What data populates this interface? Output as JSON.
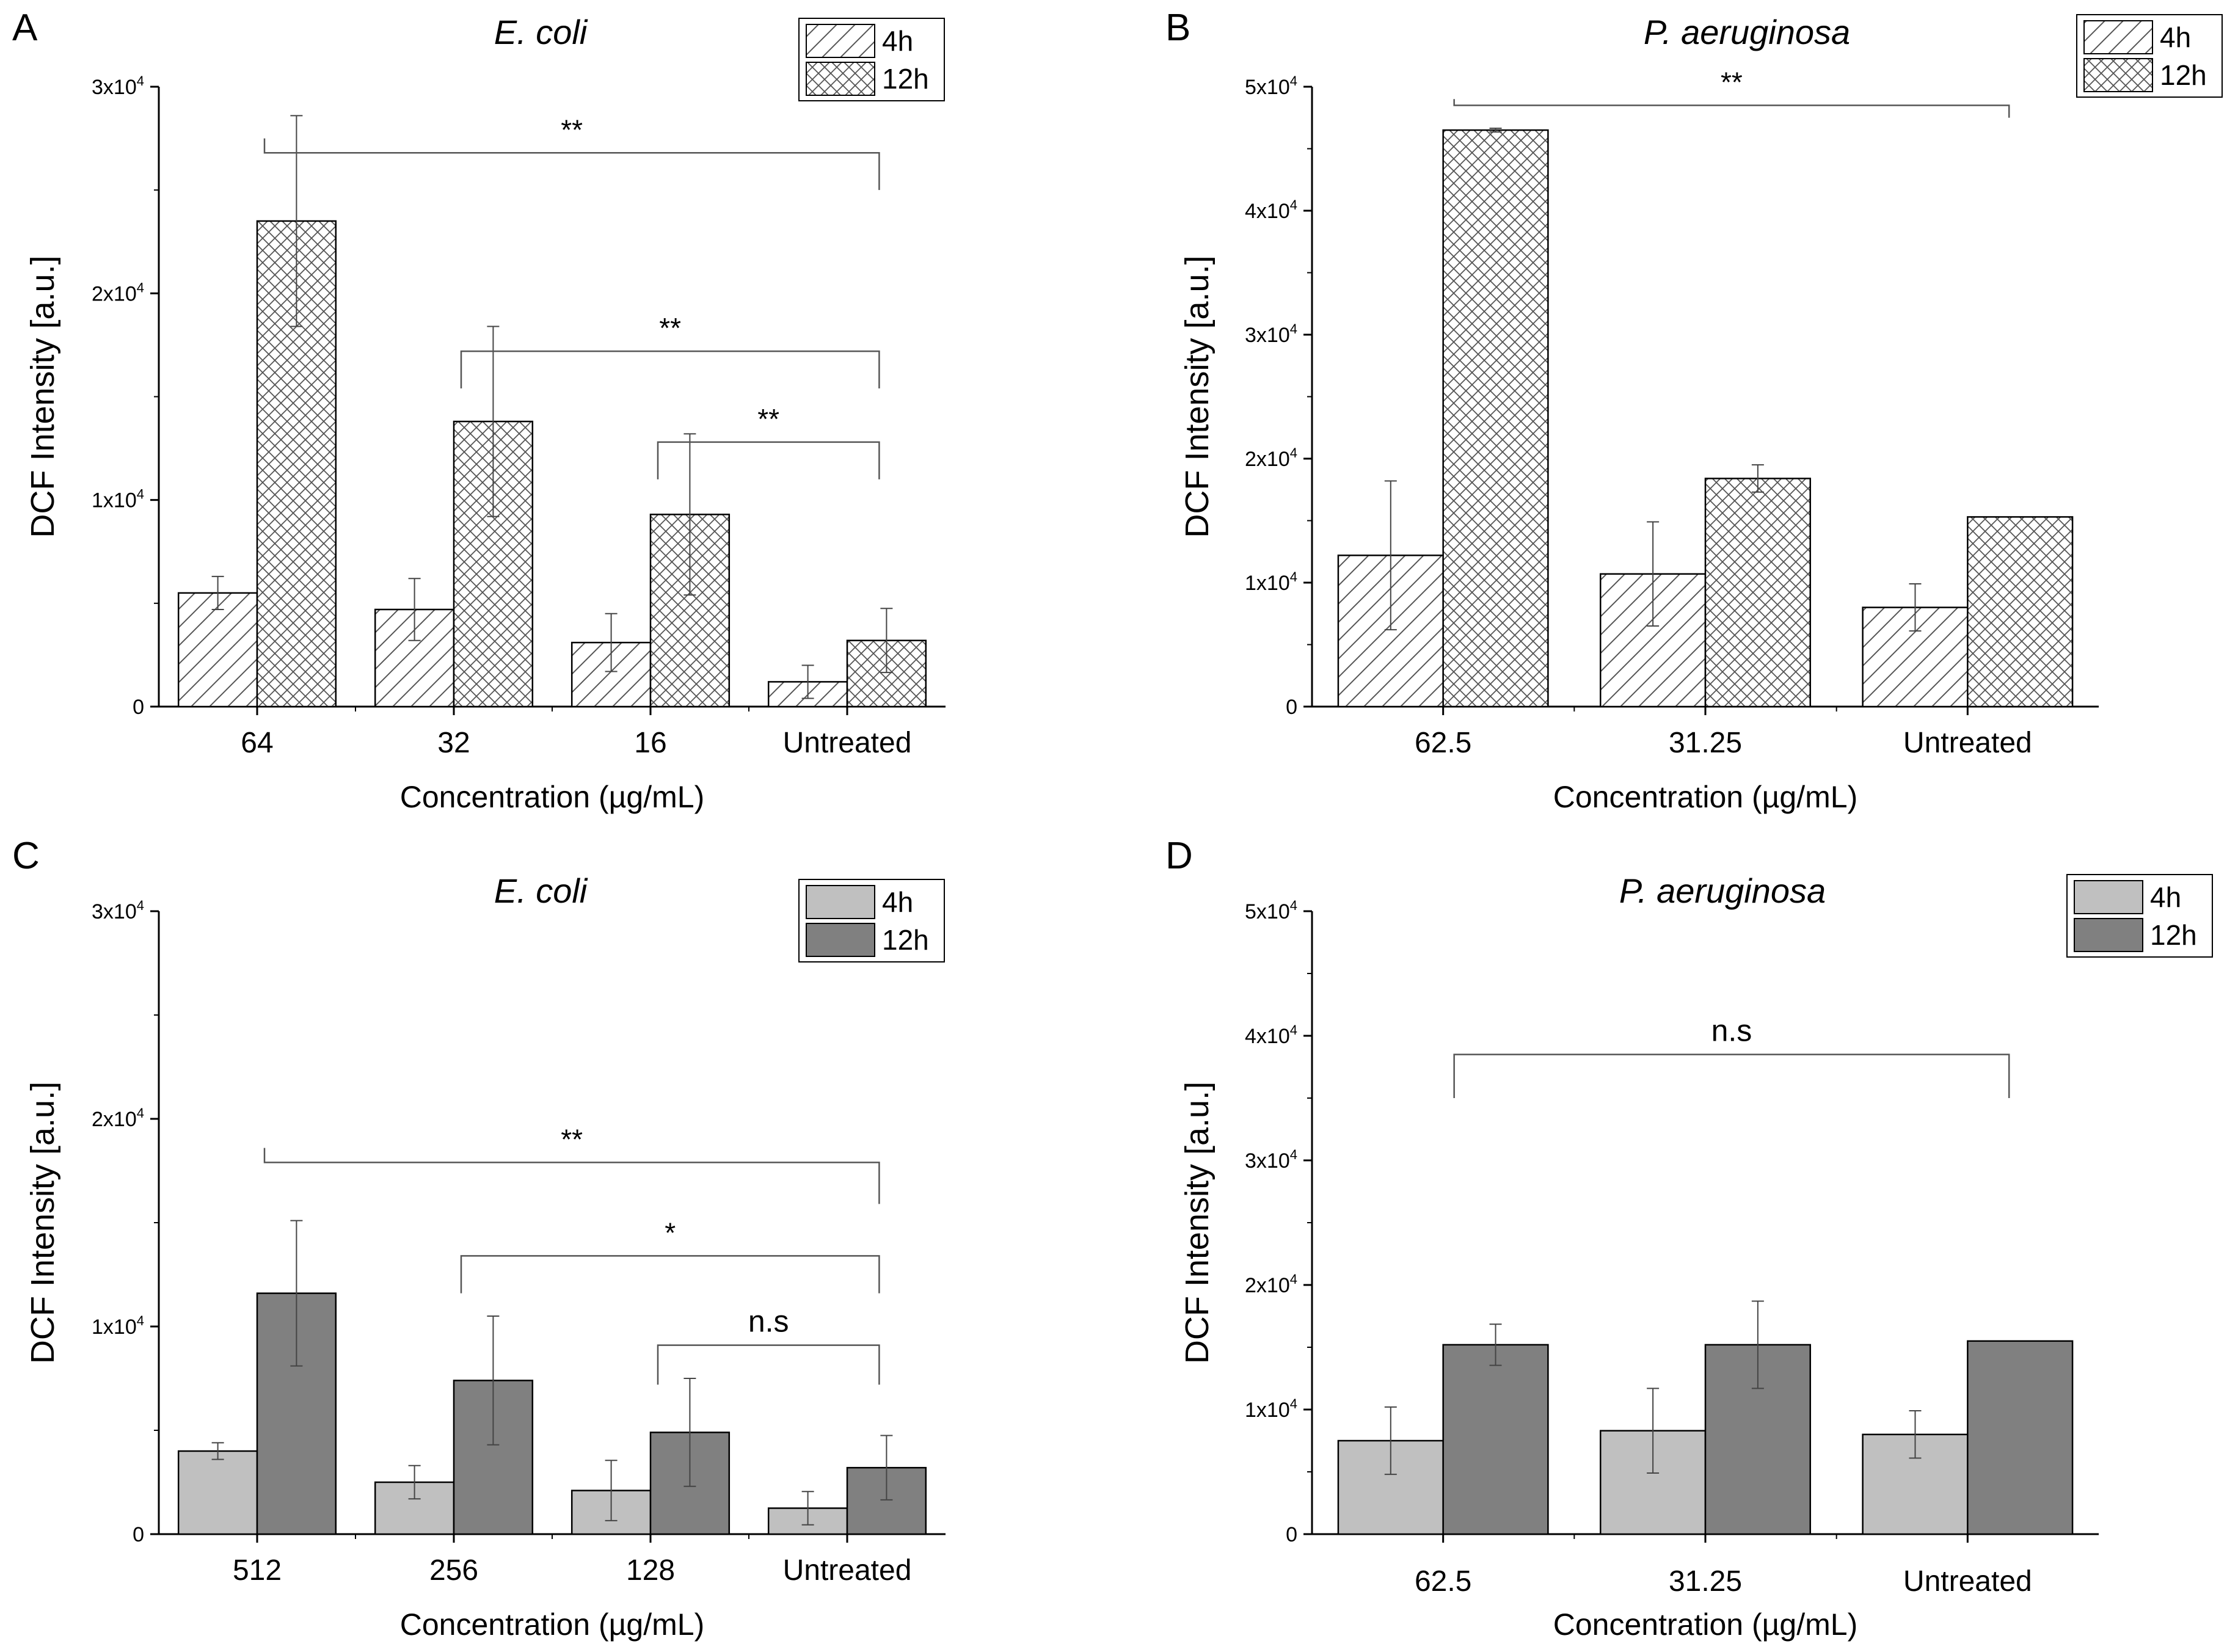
{
  "figure": {
    "shared": {
      "xlabel": "Concentration (µg/mL)",
      "ylabel": "DCF Intensity [a.u.]",
      "legend": [
        "4h",
        "12h"
      ]
    }
  },
  "chart_data": [
    {
      "type": "bar",
      "panel": "A",
      "title": "E. coli",
      "title_italic": true,
      "fill_style": "hatch",
      "xlabel": "Concentration (µg/mL)",
      "ylabel": "DCF Intensity [a.u.]",
      "ylim": [
        0,
        30000
      ],
      "yticks": [
        0,
        10000,
        20000,
        30000
      ],
      "ytick_labels": [
        {
          "base": "0",
          "exp": ""
        },
        {
          "base": "1x10",
          "exp": "4"
        },
        {
          "base": "2x10",
          "exp": "4"
        },
        {
          "base": "3x10",
          "exp": "4"
        }
      ],
      "categories": [
        "64",
        "32",
        "16",
        "Untreated"
      ],
      "series": [
        {
          "name": "4h",
          "values": [
            5500,
            4700,
            3100,
            1200
          ],
          "errors": [
            800,
            1500,
            1400,
            800
          ]
        },
        {
          "name": "12h",
          "values": [
            23500,
            13800,
            9300,
            3200
          ],
          "errors": [
            5100,
            4600,
            3900,
            1550
          ]
        }
      ],
      "legend_position": "top-right",
      "annotations": [
        {
          "from": 0,
          "to": 3,
          "label": "**",
          "y": 26800,
          "drop": 1800
        },
        {
          "from": 1,
          "to": 3,
          "label": "**",
          "y": 17200,
          "drop": 1800
        },
        {
          "from": 2,
          "to": 3,
          "label": "**",
          "y": 12800,
          "drop": 1800
        }
      ]
    },
    {
      "type": "bar",
      "panel": "B",
      "title": "P. aeruginosa",
      "title_italic": true,
      "fill_style": "hatch",
      "xlabel": "Concentration (µg/mL)",
      "ylabel": "DCF Intensity [a.u.]",
      "ylim": [
        0,
        50000
      ],
      "yticks": [
        0,
        10000,
        20000,
        30000,
        40000,
        50000
      ],
      "ytick_labels": [
        {
          "base": "0",
          "exp": ""
        },
        {
          "base": "1x10",
          "exp": "4"
        },
        {
          "base": "2x10",
          "exp": "4"
        },
        {
          "base": "3x10",
          "exp": "4"
        },
        {
          "base": "4x10",
          "exp": "4"
        },
        {
          "base": "5x10",
          "exp": "4"
        }
      ],
      "categories": [
        "62.5",
        "31.25",
        "Untreated"
      ],
      "series": [
        {
          "name": "4h",
          "values": [
            12200,
            10700,
            8000
          ],
          "errors": [
            6000,
            4200,
            1900
          ]
        },
        {
          "name": "12h",
          "values": [
            46500,
            18400,
            15300
          ],
          "errors": [
            150,
            1100,
            0
          ]
        }
      ],
      "legend_position": "top-right",
      "annotations": [
        {
          "from": 0,
          "to": 2,
          "label": "**",
          "y": 48500,
          "drop": 1000
        }
      ]
    },
    {
      "type": "bar",
      "panel": "C",
      "title": "E. coli",
      "title_italic": true,
      "fill_style": "solid",
      "colors": [
        "#c0c0c0",
        "#808080"
      ],
      "xlabel": "Concentration (µg/mL)",
      "ylabel": "DCF Intensity [a.u.]",
      "ylim": [
        0,
        30000
      ],
      "yticks": [
        0,
        10000,
        20000,
        30000
      ],
      "ytick_labels": [
        {
          "base": "0",
          "exp": ""
        },
        {
          "base": "1x10",
          "exp": "4"
        },
        {
          "base": "2x10",
          "exp": "4"
        },
        {
          "base": "3x10",
          "exp": "4"
        }
      ],
      "categories": [
        "512",
        "256",
        "128",
        "Untreated"
      ],
      "series": [
        {
          "name": "4h",
          "values": [
            4000,
            2500,
            2100,
            1250
          ],
          "errors": [
            400,
            800,
            1450,
            800
          ]
        },
        {
          "name": "12h",
          "values": [
            11600,
            7400,
            4900,
            3200
          ],
          "errors": [
            3500,
            3100,
            2600,
            1550
          ]
        }
      ],
      "legend_position": "top-right",
      "annotations": [
        {
          "from": 0,
          "to": 3,
          "label": "**",
          "y": 17900,
          "drop": 2000
        },
        {
          "from": 1,
          "to": 3,
          "label": "*",
          "y": 13400,
          "drop": 1800
        },
        {
          "from": 2,
          "to": 3,
          "label": "n.s",
          "y": 9100,
          "drop": 1900
        }
      ]
    },
    {
      "type": "bar",
      "panel": "D",
      "title": "P. aeruginosa",
      "title_italic": true,
      "fill_style": "solid",
      "colors": [
        "#c0c0c0",
        "#808080"
      ],
      "xlabel": "Concentration (µg/mL)",
      "ylabel": "DCF Intensity [a.u.]",
      "ylim": [
        0,
        50000
      ],
      "yticks": [
        0,
        10000,
        20000,
        30000,
        40000,
        50000
      ],
      "ytick_labels": [
        {
          "base": "0",
          "exp": ""
        },
        {
          "base": "1x10",
          "exp": "4"
        },
        {
          "base": "2x10",
          "exp": "4"
        },
        {
          "base": "3x10",
          "exp": "4"
        },
        {
          "base": "4x10",
          "exp": "4"
        },
        {
          "base": "5x10",
          "exp": "4"
        }
      ],
      "categories": [
        "62.5",
        "31.25",
        "Untreated"
      ],
      "series": [
        {
          "name": "4h",
          "values": [
            7500,
            8300,
            8000
          ],
          "errors": [
            2700,
            3400,
            1900
          ]
        },
        {
          "name": "12h",
          "values": [
            15200,
            15200,
            15500
          ],
          "errors": [
            1650,
            3500,
            0
          ]
        }
      ],
      "legend_position": "top-right",
      "annotations": [
        {
          "from": 0,
          "to": 2,
          "label": "n.s",
          "y": 38500,
          "drop": 3500
        }
      ]
    }
  ]
}
